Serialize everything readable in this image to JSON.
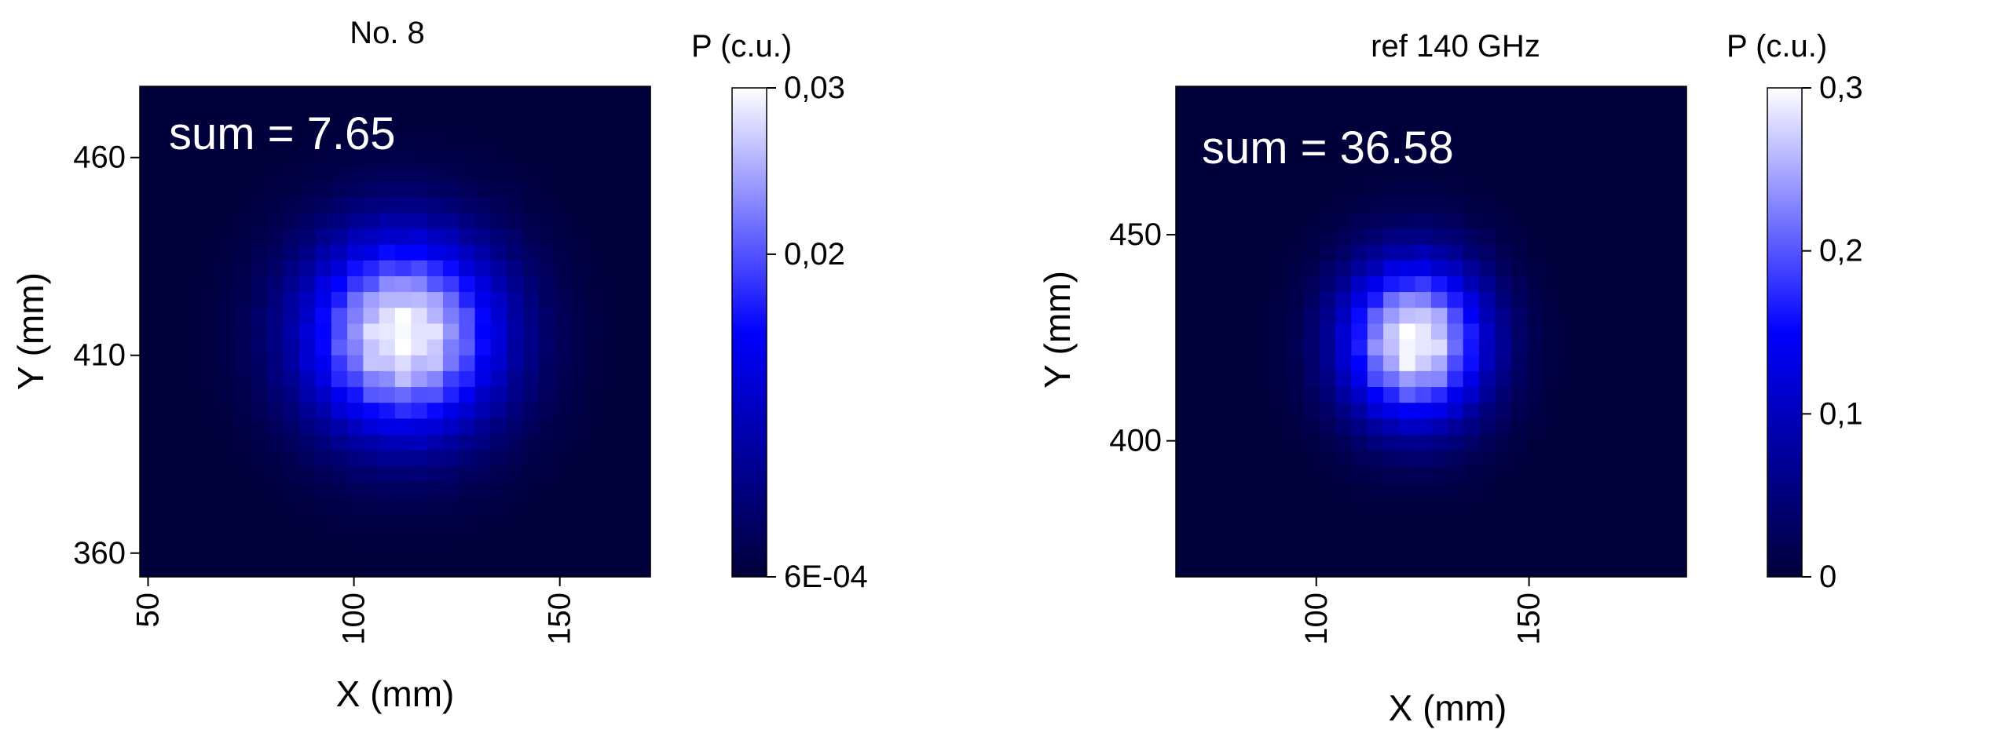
{
  "chart_data": [
    {
      "type": "heatmap",
      "title": "No. 8",
      "xlabel": "X (mm)",
      "ylabel": "Y (mm)",
      "xlim": [
        48,
        172
      ],
      "ylim": [
        354,
        478
      ],
      "xticks": [
        "50",
        "100",
        "150"
      ],
      "xtick_values": [
        50,
        100,
        150
      ],
      "yticks": [
        "360",
        "410",
        "460"
      ],
      "ytick_values": [
        360,
        410,
        460
      ],
      "annotation": "sum = 7.65",
      "colorbar": {
        "title": "P (c.u.)",
        "range": [
          0.0006,
          0.03
        ],
        "ticks": [
          "6E-04",
          "0,02",
          "0,03"
        ],
        "tick_values": [
          0.0006,
          0.02,
          0.03
        ]
      },
      "colormap": [
        "#00003a",
        "#0000ff",
        "#ffffff"
      ],
      "beam": {
        "center_x": 112,
        "center_y": 415,
        "sigma_x": 17,
        "sigma_y": 18,
        "peak": 0.03,
        "floor": 0.0006
      }
    },
    {
      "type": "heatmap",
      "title": "ref 140 GHz",
      "xlabel": "X (mm)",
      "ylabel": "Y (mm)",
      "xlim": [
        67,
        187
      ],
      "ylim": [
        367,
        486
      ],
      "xticks": [
        "100",
        "150"
      ],
      "xtick_values": [
        100,
        150
      ],
      "yticks": [
        "400",
        "450"
      ],
      "ytick_values": [
        400,
        450
      ],
      "annotation": "sum = 36.58",
      "colorbar": {
        "title": "P (c.u.)",
        "range": [
          0,
          0.3
        ],
        "ticks": [
          "0",
          "0,1",
          "0,2",
          "0,3"
        ],
        "tick_values": [
          0,
          0.1,
          0.2,
          0.3
        ]
      },
      "colormap": [
        "#00003a",
        "#0000ff",
        "#ffffff"
      ],
      "beam": {
        "center_x": 123,
        "center_y": 424,
        "sigma_x": 12,
        "sigma_y": 14,
        "peak": 0.3,
        "floor": 0
      }
    }
  ]
}
